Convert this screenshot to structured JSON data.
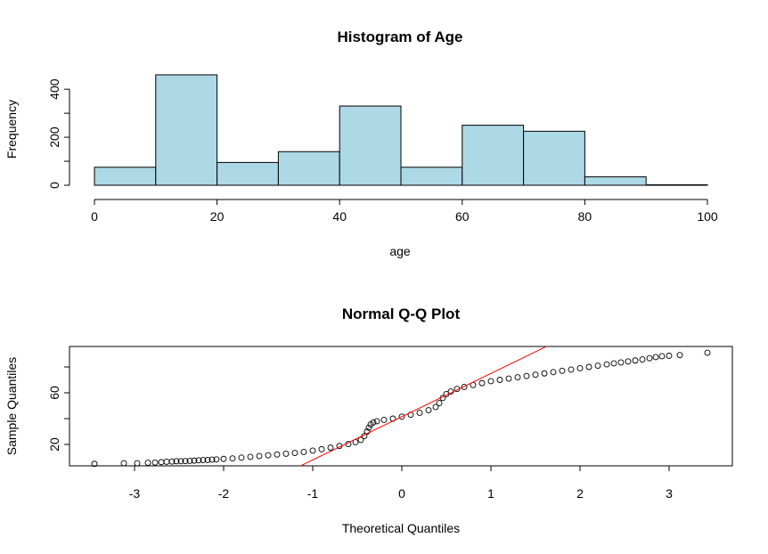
{
  "chart_data": [
    {
      "type": "bar",
      "title": "Histogram of Age",
      "xlabel": "age",
      "ylabel": "Frequency",
      "bins": [
        [
          0,
          10
        ],
        [
          10,
          20
        ],
        [
          20,
          30
        ],
        [
          30,
          40
        ],
        [
          40,
          50
        ],
        [
          50,
          60
        ],
        [
          60,
          70
        ],
        [
          70,
          80
        ],
        [
          80,
          90
        ],
        [
          90,
          100
        ]
      ],
      "values": [
        75,
        460,
        95,
        140,
        330,
        75,
        250,
        225,
        35,
        2
      ],
      "xlim": [
        0,
        100
      ],
      "ylim": [
        0,
        460
      ],
      "xticks": [
        "0",
        "20",
        "40",
        "60",
        "80",
        "100"
      ],
      "yticks": [
        "0",
        "200",
        "400"
      ],
      "bar_color": "#add8e6",
      "grid": false
    },
    {
      "type": "scatter",
      "title": "Normal Q-Q Plot",
      "xlabel": "Theoretical Quantiles",
      "ylabel": "Sample Quantiles",
      "xlim": [
        -3.5,
        3.7
      ],
      "ylim": [
        3,
        95
      ],
      "xticks": [
        "-3",
        "-2",
        "-1",
        "0",
        "1",
        "2",
        "3"
      ],
      "yticks": [
        "20",
        "60"
      ],
      "points": [
        [
          -3.45,
          5
        ],
        [
          -3.12,
          5.5
        ],
        [
          -2.97,
          5.5
        ],
        [
          -2.85,
          5.8
        ],
        [
          -2.77,
          6
        ],
        [
          -2.7,
          6.3
        ],
        [
          -2.64,
          6.6
        ],
        [
          -2.58,
          6.8
        ],
        [
          -2.53,
          7
        ],
        [
          -2.48,
          7
        ],
        [
          -2.43,
          7.1
        ],
        [
          -2.38,
          7.3
        ],
        [
          -2.33,
          7.5
        ],
        [
          -2.28,
          7.7
        ],
        [
          -2.23,
          7.9
        ],
        [
          -2.18,
          8
        ],
        [
          -2.13,
          8.2
        ],
        [
          -2.08,
          8.4
        ],
        [
          -2.0,
          8.8
        ],
        [
          -1.9,
          9.2
        ],
        [
          -1.8,
          9.8
        ],
        [
          -1.7,
          10.4
        ],
        [
          -1.6,
          11
        ],
        [
          -1.5,
          11.6
        ],
        [
          -1.4,
          12.2
        ],
        [
          -1.3,
          12.8
        ],
        [
          -1.2,
          13.4
        ],
        [
          -1.1,
          14.2
        ],
        [
          -1.0,
          15.2
        ],
        [
          -0.9,
          16.3
        ],
        [
          -0.8,
          17.5
        ],
        [
          -0.7,
          18.8
        ],
        [
          -0.6,
          20.3
        ],
        [
          -0.52,
          21.8
        ],
        [
          -0.46,
          23.5
        ],
        [
          -0.42,
          26.5
        ],
        [
          -0.39,
          30
        ],
        [
          -0.37,
          33
        ],
        [
          -0.35,
          35.5
        ],
        [
          -0.32,
          37
        ],
        [
          -0.28,
          38
        ],
        [
          -0.2,
          39
        ],
        [
          -0.1,
          40
        ],
        [
          0.0,
          41.5
        ],
        [
          0.1,
          43
        ],
        [
          0.2,
          44.5
        ],
        [
          0.3,
          46.5
        ],
        [
          0.38,
          49
        ],
        [
          0.42,
          52
        ],
        [
          0.46,
          56
        ],
        [
          0.5,
          59
        ],
        [
          0.55,
          61
        ],
        [
          0.62,
          63
        ],
        [
          0.7,
          64.5
        ],
        [
          0.8,
          66
        ],
        [
          0.9,
          67.5
        ],
        [
          1.0,
          69
        ],
        [
          1.1,
          70
        ],
        [
          1.2,
          71
        ],
        [
          1.3,
          72
        ],
        [
          1.4,
          73
        ],
        [
          1.5,
          74
        ],
        [
          1.6,
          75
        ],
        [
          1.7,
          76
        ],
        [
          1.8,
          77
        ],
        [
          1.9,
          78
        ],
        [
          2.0,
          79
        ],
        [
          2.1,
          80
        ],
        [
          2.2,
          81
        ],
        [
          2.3,
          82
        ],
        [
          2.38,
          82.8
        ],
        [
          2.46,
          83.5
        ],
        [
          2.54,
          84.3
        ],
        [
          2.62,
          85
        ],
        [
          2.7,
          85.8
        ],
        [
          2.78,
          86.8
        ],
        [
          2.85,
          87.6
        ],
        [
          2.92,
          88.3
        ],
        [
          3.0,
          88.7
        ],
        [
          3.12,
          89.2
        ],
        [
          3.43,
          91
        ]
      ],
      "ref_line": {
        "intercept": 41.5,
        "slope": 33.5,
        "color": "#ff0000"
      },
      "grid": false
    }
  ]
}
